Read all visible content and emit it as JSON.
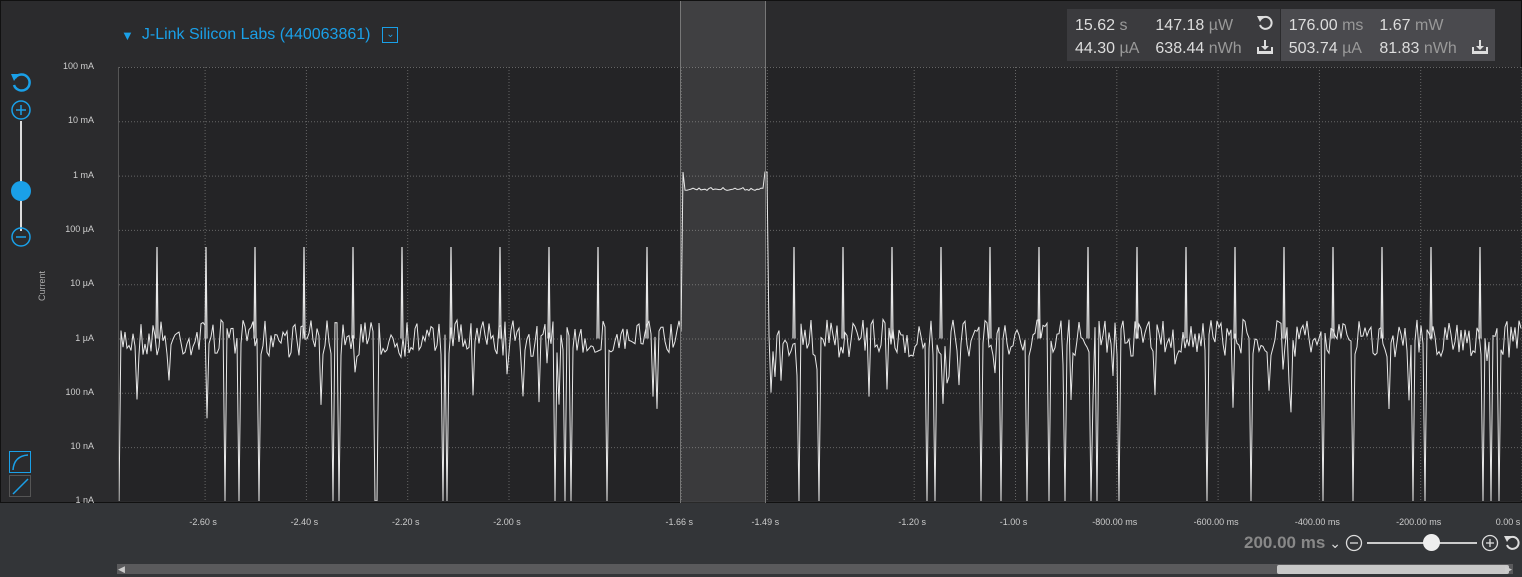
{
  "device": {
    "name": "J-Link Silicon Labs (440063861)"
  },
  "y_axis": {
    "title": "Current",
    "ticks": [
      "100 mA",
      "10 mA",
      "1 mA",
      "100 µA",
      "10 µA",
      "1 µA",
      "100 nA",
      "10 nA",
      "1 nA"
    ]
  },
  "x_axis": {
    "ticks": [
      "-2.60 s",
      "-2.40 s",
      "-2.20 s",
      "-2.00 s",
      "-1.66 s",
      "-1.49 s",
      "-1.20 s",
      "-1.00 s",
      "-800.00 ms",
      "-600.00 ms",
      "-400.00 ms",
      "-200.00 ms",
      "0.00 s"
    ],
    "tick_values_s": [
      -2.6,
      -2.4,
      -2.2,
      -2.0,
      -1.66,
      -1.49,
      -1.2,
      -1.0,
      -0.8,
      -0.6,
      -0.4,
      -0.2,
      0.0
    ],
    "range_s": [
      -2.77,
      0.0
    ]
  },
  "stats_window": {
    "duration": "15.62",
    "duration_unit": "s",
    "avg_current": "44.30",
    "avg_current_unit": "µA",
    "power": "147.18",
    "power_unit": "µW",
    "energy": "638.44",
    "energy_unit": "nWh"
  },
  "stats_selection": {
    "duration": "176.00",
    "duration_unit": "ms",
    "avg_current": "503.74",
    "avg_current_unit": "µA",
    "power": "1.67",
    "power_unit": "mW",
    "energy": "81.83",
    "energy_unit": "nWh"
  },
  "time_window": {
    "label": "200.00 ms"
  },
  "selection_range_s": [
    -1.66,
    -1.49
  ],
  "colors": {
    "accent": "#1aa0e8",
    "trace": "#e8e8e8",
    "background": "#2b2b2d"
  }
}
